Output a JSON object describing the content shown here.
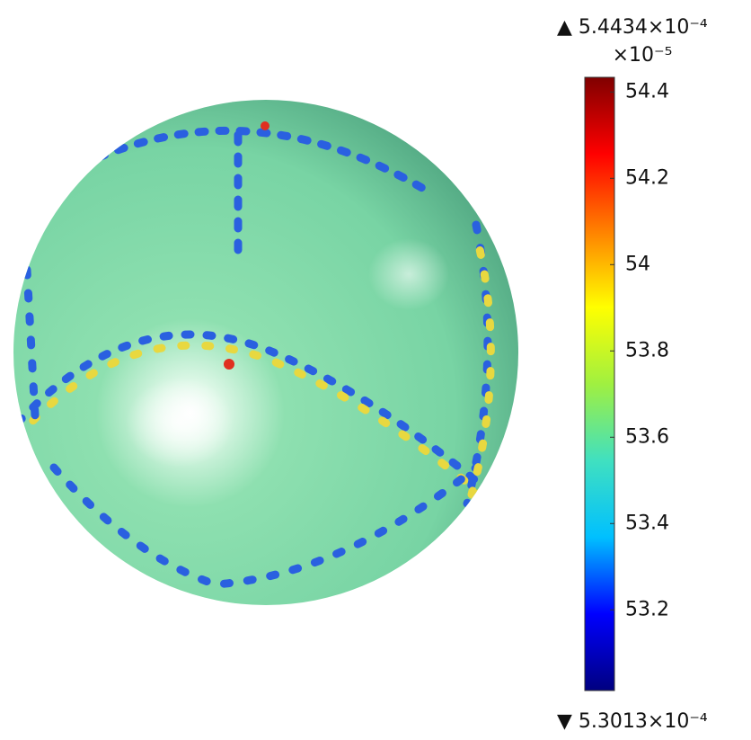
{
  "chart_data": {
    "type": "colorbar",
    "max_label": "▲ 5.4434×10⁻⁴",
    "min_label": "▼ 5.3013×10⁻⁴",
    "scale_label": "×10⁻⁵",
    "ylim": [
      53.013,
      54.434
    ],
    "yticks": [
      53.2,
      53.4,
      53.6,
      53.8,
      54,
      54.2,
      54.4
    ],
    "colormap": [
      "#000080",
      "#0000ff",
      "#00c0ff",
      "#40e0c0",
      "#a0f040",
      "#ffff00",
      "#ff8000",
      "#ff0000",
      "#800000"
    ]
  }
}
